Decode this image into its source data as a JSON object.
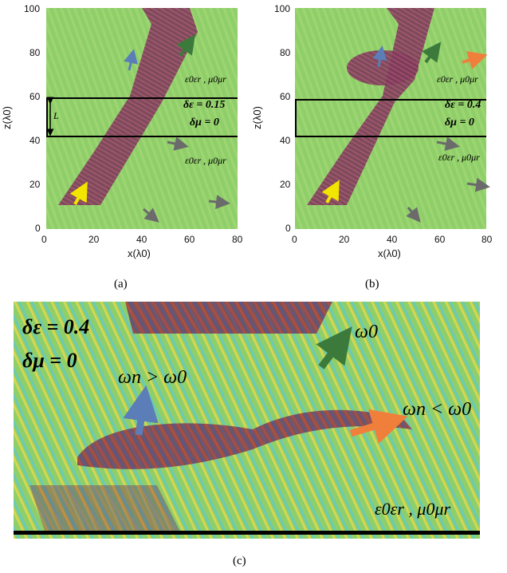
{
  "panels": [
    {
      "id": "a",
      "caption": "(a)",
      "x_ticks": [
        "0",
        "20",
        "40",
        "60",
        "80"
      ],
      "z_ticks": [
        "0",
        "20",
        "40",
        "60",
        "80",
        "100"
      ],
      "x_label": "x(λ0)",
      "z_label": "z(λ0)",
      "slab_label": "L",
      "delta_eps": "δε = 0.15",
      "delta_mu": "δμ = 0",
      "medium_upper": "ε0εr , μ0μr",
      "medium_lower": "ε0εr , μ0μr"
    },
    {
      "id": "b",
      "caption": "(b)",
      "x_ticks": [
        "0",
        "20",
        "40",
        "60",
        "80"
      ],
      "z_ticks": [
        "0",
        "20",
        "40",
        "60",
        "80",
        "100"
      ],
      "x_label": "x(λ0)",
      "z_label": "z(λ0)",
      "delta_eps": "δε = 0.4",
      "delta_mu": "δμ = 0",
      "medium_upper": "ε0εr , μ0μr",
      "medium_lower": "ε0εr , μ0μr"
    },
    {
      "id": "c",
      "caption": "(c)",
      "delta_eps": "δε = 0.4",
      "delta_mu": "δμ = 0",
      "omega0": "ω0",
      "omega_up": "ωn > ω0",
      "omega_down": "ωn < ω0",
      "medium": "ε0εr , μ0μr"
    }
  ],
  "colors": {
    "background_field": "#8fcf6a",
    "beam": "#7a3a5a",
    "wave_red": "#c0392b",
    "wave_blue": "#2c4fa8",
    "wave_yellow": "#e8d84a",
    "wave_cyan": "#5ac8d8",
    "arrow_yellow": "#f2e600",
    "arrow_blue": "#5b7db8",
    "arrow_green": "#3b7a3b",
    "arrow_orange": "#f07f3c",
    "arrow_gray": "#6b6b6b"
  }
}
